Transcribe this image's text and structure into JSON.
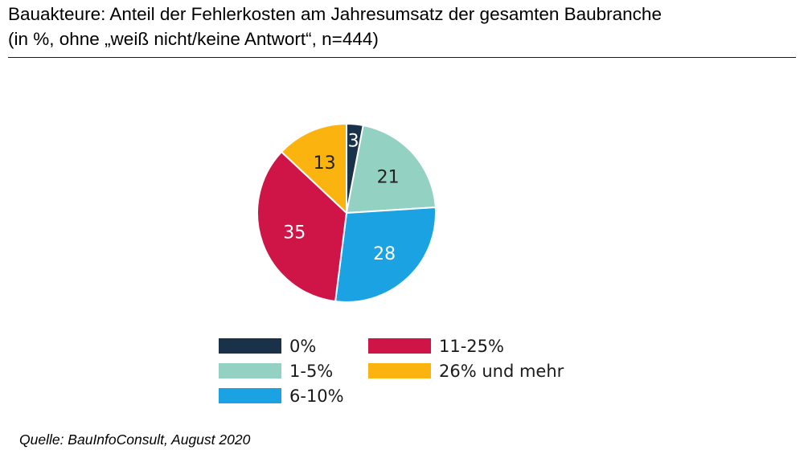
{
  "title": {
    "line1": "Bauakteure: Anteil der Fehlerkosten am Jahresumsatz der gesamten Baubranche",
    "line2": "(in %, ohne „weiß nicht/keine Antwort“, n=444)"
  },
  "source": "Quelle: BauInfoConsult, August 2020",
  "colors": {
    "0%": "#19324a",
    "1-5%": "#93d2c3",
    "6-10%": "#1aa2e3",
    "11-25%": "#cf1547",
    "26% und mehr": "#fbb40f"
  },
  "chart_data": {
    "type": "pie",
    "title": "Bauakteure: Anteil der Fehlerkosten am Jahresumsatz der gesamten Baubranche",
    "subtitle": "(in %, ohne „weiß nicht/keine Antwort“, n=444)",
    "unit": "%",
    "slices": [
      {
        "label": "0%",
        "value": 3,
        "color": "#19324a"
      },
      {
        "label": "1-5%",
        "value": 21,
        "color": "#93d2c3"
      },
      {
        "label": "6-10%",
        "value": 28,
        "color": "#1aa2e3"
      },
      {
        "label": "11-25%",
        "value": 35,
        "color": "#cf1547"
      },
      {
        "label": "26% und mehr",
        "value": 13,
        "color": "#fbb40f"
      }
    ],
    "legend": {
      "placement": "bottom",
      "columns": [
        [
          "0%",
          "1-5%",
          "6-10%"
        ],
        [
          "11-25%",
          "26% und mehr"
        ]
      ]
    }
  }
}
